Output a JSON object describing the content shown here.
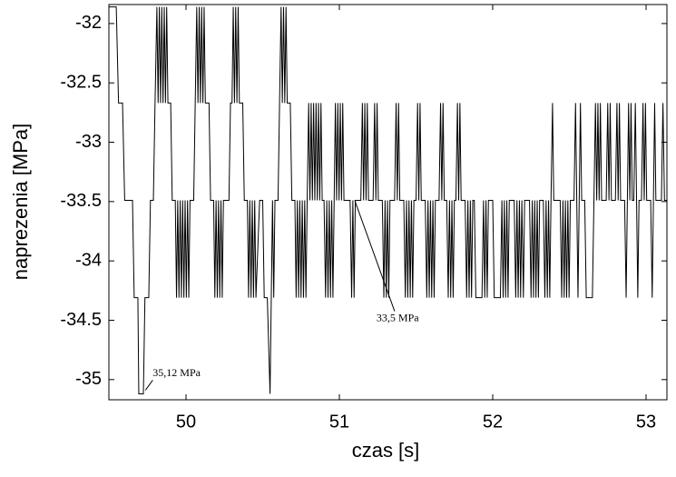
{
  "chart_data": {
    "type": "line",
    "x_label": "czas [s]",
    "y_label": "naprezenia [MPa]",
    "color": "#000000",
    "xlim": [
      49.497,
      53.136
    ],
    "ylim": [
      -35.17,
      -31.84
    ],
    "xticks": [
      50,
      51,
      52,
      53
    ],
    "yticks": [
      -32,
      -32.5,
      -33,
      -33.5,
      -34,
      -34.5,
      -35
    ],
    "annotations": [
      {
        "text": "35,12 MPa",
        "x": 49.7,
        "y": -35.12
      },
      {
        "text": "33,5 MPa",
        "x": 51.1,
        "y": -33.49
      }
    ],
    "x": [
      49.497,
      49.545,
      49.56,
      49.586,
      49.6,
      49.651,
      49.662,
      49.686,
      49.692,
      49.722,
      49.732,
      49.757,
      49.768,
      49.787,
      49.798,
      49.81,
      49.818,
      49.826,
      49.834,
      49.842,
      49.85,
      49.858,
      49.866,
      49.874,
      49.882,
      49.9,
      49.91,
      49.93,
      49.938,
      49.946,
      49.954,
      49.962,
      49.97,
      49.978,
      49.986,
      49.994,
      50.002,
      50.01,
      50.018,
      50.026,
      50.05,
      50.06,
      50.07,
      50.078,
      50.086,
      50.094,
      50.102,
      50.11,
      50.118,
      50.126,
      50.15,
      50.16,
      50.18,
      50.188,
      50.196,
      50.204,
      50.212,
      50.22,
      50.228,
      50.236,
      50.244,
      50.28,
      50.29,
      50.3,
      50.308,
      50.316,
      50.324,
      50.332,
      50.34,
      50.348,
      50.37,
      50.38,
      50.4,
      50.408,
      50.416,
      50.424,
      50.432,
      50.44,
      50.448,
      50.456,
      50.48,
      50.5,
      50.51,
      50.53,
      50.548,
      50.556,
      50.564,
      50.572,
      50.58,
      50.6,
      50.61,
      50.62,
      50.628,
      50.636,
      50.644,
      50.652,
      50.66,
      50.68,
      50.69,
      50.71,
      50.718,
      50.726,
      50.734,
      50.742,
      50.75,
      50.758,
      50.766,
      50.774,
      50.782,
      50.79,
      50.8,
      50.808,
      50.816,
      50.824,
      50.832,
      50.84,
      50.848,
      50.856,
      50.864,
      50.872,
      50.88,
      50.888,
      50.9,
      50.91,
      50.918,
      50.926,
      50.934,
      50.942,
      50.95,
      50.958,
      50.966,
      50.974,
      50.982,
      50.99,
      50.998,
      51.006,
      51.014,
      51.022,
      51.03,
      51.07,
      51.08,
      51.088,
      51.096,
      51.104,
      51.14,
      51.15,
      51.158,
      51.166,
      51.174,
      51.182,
      51.19,
      51.22,
      51.23,
      51.238,
      51.246,
      51.254,
      51.28,
      51.29,
      51.298,
      51.306,
      51.314,
      51.322,
      51.33,
      51.36,
      51.37,
      51.378,
      51.386,
      51.394,
      51.42,
      51.43,
      51.438,
      51.446,
      51.454,
      51.462,
      51.47,
      51.478,
      51.486,
      51.5,
      51.51,
      51.518,
      51.526,
      51.534,
      51.56,
      51.57,
      51.578,
      51.586,
      51.594,
      51.602,
      51.61,
      51.618,
      51.626,
      51.65,
      51.66,
      51.668,
      51.676,
      51.684,
      51.7,
      51.71,
      51.718,
      51.726,
      51.734,
      51.742,
      51.75,
      51.76,
      51.77,
      51.778,
      51.786,
      51.794,
      51.82,
      51.83,
      51.838,
      51.846,
      51.854,
      51.862,
      51.87,
      51.88,
      51.89,
      51.93,
      51.94,
      51.948,
      51.956,
      51.964,
      51.972,
      52.0,
      52.01,
      52.05,
      52.06,
      52.068,
      52.076,
      52.084,
      52.092,
      52.1,
      52.108,
      52.14,
      52.15,
      52.158,
      52.166,
      52.174,
      52.182,
      52.19,
      52.2,
      52.208,
      52.24,
      52.25,
      52.258,
      52.266,
      52.274,
      52.282,
      52.29,
      52.298,
      52.306,
      52.33,
      52.34,
      52.348,
      52.356,
      52.364,
      52.372,
      52.38,
      52.39,
      52.398,
      52.44,
      52.45,
      52.458,
      52.466,
      52.474,
      52.482,
      52.49,
      52.498,
      52.506,
      52.53,
      52.54,
      52.548,
      52.556,
      52.564,
      52.572,
      52.58,
      52.6,
      52.61,
      52.65,
      52.66,
      52.67,
      52.678,
      52.686,
      52.694,
      52.702,
      52.71,
      52.74,
      52.75,
      52.758,
      52.766,
      52.774,
      52.8,
      52.81,
      52.818,
      52.826,
      52.834,
      52.86,
      52.87,
      52.878,
      52.886,
      52.894,
      52.902,
      52.91,
      52.92,
      52.93,
      52.938,
      52.946,
      52.954,
      52.97,
      52.98,
      52.988,
      52.996,
      53.004,
      53.03,
      53.04,
      53.048,
      53.056,
      53.064,
      53.1,
      53.11,
      53.12,
      53.136
    ],
    "values": [
      -31.86,
      -31.86,
      -32.67,
      -32.67,
      -33.49,
      -33.49,
      -34.31,
      -34.31,
      -35.12,
      -35.12,
      -34.31,
      -34.31,
      -33.49,
      -33.49,
      -32.67,
      -31.86,
      -32.67,
      -31.86,
      -32.67,
      -31.86,
      -32.67,
      -31.86,
      -32.67,
      -31.86,
      -32.67,
      -32.67,
      -33.49,
      -33.49,
      -34.31,
      -33.49,
      -34.31,
      -33.49,
      -34.31,
      -33.49,
      -34.31,
      -33.49,
      -34.31,
      -33.49,
      -34.31,
      -33.49,
      -33.49,
      -32.67,
      -31.86,
      -32.67,
      -31.86,
      -32.67,
      -31.86,
      -32.67,
      -31.86,
      -32.67,
      -32.67,
      -33.49,
      -33.49,
      -34.31,
      -33.49,
      -34.31,
      -33.49,
      -34.31,
      -33.49,
      -34.31,
      -33.49,
      -33.49,
      -32.67,
      -32.67,
      -31.86,
      -32.67,
      -31.86,
      -32.67,
      -31.86,
      -32.67,
      -32.67,
      -33.49,
      -33.49,
      -34.31,
      -33.49,
      -34.31,
      -33.49,
      -34.31,
      -33.49,
      -34.31,
      -33.49,
      -33.49,
      -34.31,
      -34.31,
      -35.12,
      -34.31,
      -33.49,
      -34.31,
      -33.49,
      -33.49,
      -32.67,
      -31.86,
      -32.67,
      -31.86,
      -32.67,
      -31.86,
      -32.67,
      -32.67,
      -33.49,
      -33.49,
      -34.31,
      -33.49,
      -34.31,
      -33.49,
      -34.31,
      -33.49,
      -34.31,
      -33.49,
      -34.31,
      -33.49,
      -32.67,
      -33.49,
      -32.67,
      -33.49,
      -32.67,
      -33.49,
      -32.67,
      -33.49,
      -32.67,
      -33.49,
      -32.67,
      -33.49,
      -33.49,
      -34.31,
      -33.49,
      -34.31,
      -33.49,
      -34.31,
      -33.49,
      -34.31,
      -33.49,
      -32.67,
      -33.49,
      -32.67,
      -33.49,
      -32.67,
      -33.49,
      -32.67,
      -33.49,
      -33.49,
      -34.31,
      -33.49,
      -34.31,
      -33.49,
      -33.49,
      -32.67,
      -33.49,
      -32.67,
      -33.49,
      -32.67,
      -33.49,
      -33.49,
      -32.67,
      -33.49,
      -32.67,
      -33.49,
      -33.49,
      -34.31,
      -33.49,
      -34.31,
      -33.49,
      -34.31,
      -33.49,
      -33.49,
      -32.67,
      -33.49,
      -32.67,
      -33.49,
      -33.49,
      -34.31,
      -33.49,
      -34.31,
      -33.49,
      -34.31,
      -33.49,
      -34.31,
      -33.49,
      -33.49,
      -32.67,
      -33.49,
      -32.67,
      -33.49,
      -33.49,
      -34.31,
      -33.49,
      -34.31,
      -33.49,
      -34.31,
      -33.49,
      -34.31,
      -33.49,
      -33.49,
      -32.67,
      -33.49,
      -32.67,
      -33.49,
      -33.49,
      -34.31,
      -33.49,
      -34.31,
      -33.49,
      -34.31,
      -33.49,
      -33.49,
      -32.67,
      -33.49,
      -32.67,
      -33.49,
      -33.49,
      -34.31,
      -33.49,
      -34.31,
      -33.49,
      -34.31,
      -33.49,
      -33.49,
      -34.31,
      -34.31,
      -33.49,
      -34.31,
      -33.49,
      -34.31,
      -33.49,
      -33.49,
      -34.31,
      -34.31,
      -33.49,
      -34.31,
      -33.49,
      -34.31,
      -33.49,
      -34.31,
      -33.49,
      -33.49,
      -34.31,
      -33.49,
      -34.31,
      -33.49,
      -34.31,
      -33.49,
      -34.31,
      -33.49,
      -33.49,
      -34.31,
      -33.49,
      -34.31,
      -33.49,
      -34.31,
      -33.49,
      -34.31,
      -33.49,
      -33.49,
      -34.31,
      -33.49,
      -34.31,
      -33.49,
      -34.31,
      -33.49,
      -32.67,
      -33.49,
      -33.49,
      -34.31,
      -33.49,
      -34.31,
      -33.49,
      -34.31,
      -33.49,
      -34.31,
      -33.49,
      -33.49,
      -32.67,
      -33.49,
      -34.31,
      -33.49,
      -32.67,
      -33.49,
      -33.49,
      -34.31,
      -34.31,
      -33.49,
      -32.67,
      -33.49,
      -32.67,
      -33.49,
      -32.67,
      -33.49,
      -33.49,
      -32.67,
      -33.49,
      -32.67,
      -33.49,
      -33.49,
      -32.67,
      -33.49,
      -32.67,
      -33.49,
      -33.49,
      -34.31,
      -33.49,
      -32.67,
      -33.49,
      -32.67,
      -33.49,
      -33.49,
      -32.67,
      -33.49,
      -34.31,
      -33.49,
      -33.49,
      -32.67,
      -33.49,
      -32.67,
      -33.49,
      -33.49,
      -34.31,
      -33.49,
      -32.67,
      -33.49,
      -33.49,
      -32.67,
      -33.49,
      -33.49
    ]
  }
}
